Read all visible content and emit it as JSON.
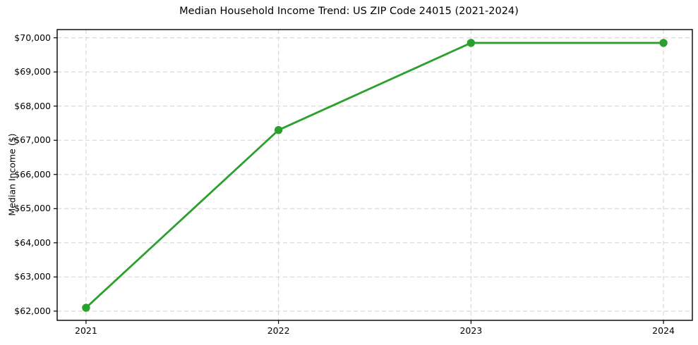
{
  "figure": {
    "title": "Median Household Income Trend: US ZIP Code 24015 (2021-2024)"
  },
  "chart_data": {
    "type": "line",
    "title": "Median Household Income Trend: US ZIP Code 24015 (2021-2024)",
    "xlabel": "",
    "ylabel": "Median Income ($)",
    "x": [
      2021,
      2022,
      2023,
      2024
    ],
    "xtick_labels": [
      "2021",
      "2022",
      "2023",
      "2024"
    ],
    "series": [
      {
        "name": "Median Household Income",
        "values": [
          62100,
          67300,
          69850,
          69850
        ]
      }
    ],
    "ytick_values": [
      62000,
      63000,
      64000,
      65000,
      66000,
      67000,
      68000,
      69000,
      70000
    ],
    "ytick_labels": [
      "$62,000",
      "$63,000",
      "$64,000",
      "$65,000",
      "$66,000",
      "$67,000",
      "$68,000",
      "$69,000",
      "$70,000"
    ],
    "xlim": [
      2020.85,
      2024.15
    ],
    "ylim": [
      61730,
      70240
    ],
    "grid": true,
    "grid_style": "dashed",
    "legend_position": "none",
    "marker": "circle",
    "colors": {
      "line": "#2ca02c",
      "marker": "#2ca02c",
      "grid": "#d5d5d5",
      "axis": "#000000",
      "background": "#ffffff",
      "text": "#000000"
    }
  }
}
